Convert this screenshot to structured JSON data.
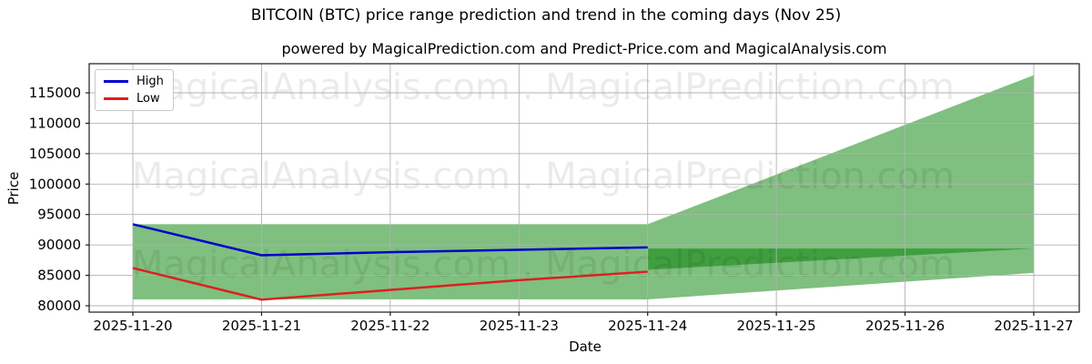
{
  "header": {
    "title": "BITCOIN (BTC) price range prediction and trend in the coming days (Nov 25)",
    "subtitle": "powered by MagicalPrediction.com and Predict-Price.com and MagicalAnalysis.com"
  },
  "chart_data": {
    "type": "area",
    "title": "BITCOIN (BTC) price range prediction and trend in the coming days (Nov 25)",
    "subtitle": "powered by MagicalPrediction.com and Predict-Price.com and MagicalAnalysis.com",
    "xlabel": "Date",
    "ylabel": "Price",
    "x_dates": [
      "2025-11-20",
      "2025-11-21",
      "2025-11-22",
      "2025-11-23",
      "2025-11-24",
      "2025-11-25",
      "2025-11-26",
      "2025-11-27"
    ],
    "y_ticks": [
      80000,
      85000,
      90000,
      95000,
      100000,
      105000,
      110000,
      115000
    ],
    "ylim": [
      79100,
      119500
    ],
    "grid": true,
    "series": [
      {
        "name": "High",
        "color": "#0000cd",
        "x": [
          "2025-11-20",
          "2025-11-21",
          "2025-11-22",
          "2025-11-23",
          "2025-11-24"
        ],
        "values": [
          93400,
          88300,
          88800,
          89200,
          89600
        ]
      },
      {
        "name": "Low",
        "color": "#dc2020",
        "x": [
          "2025-11-20",
          "2025-11-21",
          "2025-11-22",
          "2025-11-23",
          "2025-11-24"
        ],
        "values": [
          86200,
          81000,
          82600,
          84200,
          85600
        ]
      }
    ],
    "bands": [
      {
        "name": "observed-range-band",
        "x": [
          "2025-11-20",
          "2025-11-24"
        ],
        "upper": [
          93400,
          93400
        ],
        "lower": [
          81050,
          81050
        ]
      },
      {
        "name": "high-forecast-band",
        "x": [
          "2025-11-24",
          "2025-11-27"
        ],
        "upper": [
          93400,
          117900
        ],
        "lower": [
          85900,
          89400
        ]
      },
      {
        "name": "low-forecast-band",
        "x": [
          "2025-11-24",
          "2025-11-27"
        ],
        "upper": [
          89400,
          89400
        ],
        "lower": [
          81050,
          85400
        ]
      }
    ],
    "band_color": "rgba(0,128,0,0.5)",
    "legend": {
      "position": "upper left",
      "entries": [
        {
          "label": "High",
          "color": "#0000cd"
        },
        {
          "label": "Low",
          "color": "#dc2020"
        }
      ]
    },
    "watermark": {
      "text": "MagicalAnalysis.com . MagicalPrediction.com",
      "color": "rgba(0,0,0,0.08)",
      "rows": 3
    }
  }
}
